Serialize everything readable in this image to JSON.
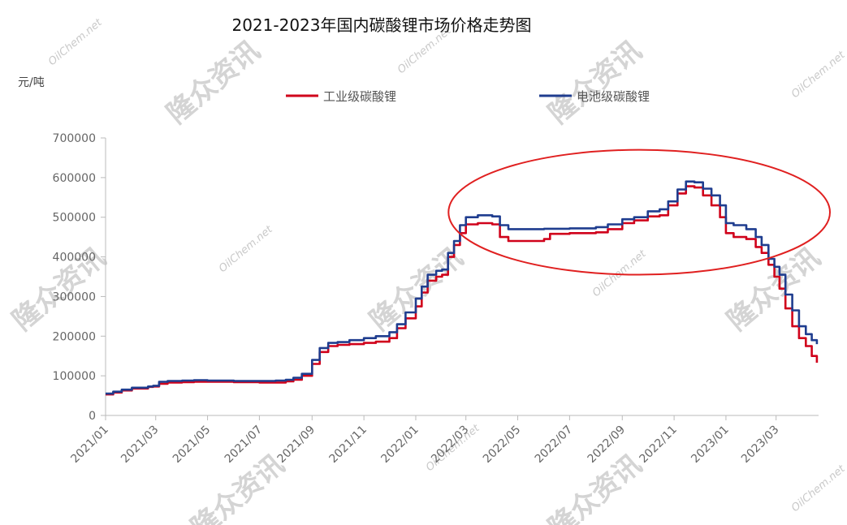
{
  "chart_data": {
    "type": "line",
    "title": "2021-2023年国内碳酸锂市场价格走势图",
    "ylabel": "元/吨",
    "xlabel": "",
    "ylim": [
      0,
      700000
    ],
    "yticks": [
      0,
      100000,
      200000,
      300000,
      400000,
      500000,
      600000,
      700000
    ],
    "ytick_labels": [
      "0",
      "100000",
      "200000",
      "300000",
      "400000",
      "500000",
      "600000",
      "700000"
    ],
    "xlim": [
      "2021-01-01",
      "2023-04-20"
    ],
    "xticks": [
      "2021-01-01",
      "2021-03-01",
      "2021-05-01",
      "2021-07-01",
      "2021-09-01",
      "2021-11-01",
      "2022-01-01",
      "2022-03-01",
      "2022-05-01",
      "2022-07-01",
      "2022-09-01",
      "2022-11-01",
      "2023-01-01",
      "2023-03-01"
    ],
    "xtick_labels": [
      "2021/01",
      "2021/03",
      "2021/05",
      "2021/07",
      "2021/09",
      "2021/11",
      "2022/01",
      "2022/03",
      "2022/05",
      "2022/07",
      "2022/09",
      "2022/11",
      "2023/01",
      "2023/03"
    ],
    "legend_position": "top",
    "grid": false,
    "series": [
      {
        "name": "工业级碳酸锂",
        "color": "#d0021b",
        "points": [
          [
            "2021-01-01",
            53000
          ],
          [
            "2021-01-10",
            58000
          ],
          [
            "2021-01-20",
            63000
          ],
          [
            "2021-02-01",
            68000
          ],
          [
            "2021-02-20",
            72000
          ],
          [
            "2021-02-26",
            73000
          ],
          [
            "2021-03-05",
            80000
          ],
          [
            "2021-03-15",
            83000
          ],
          [
            "2021-04-01",
            84000
          ],
          [
            "2021-04-15",
            85000
          ],
          [
            "2021-05-01",
            85000
          ],
          [
            "2021-06-01",
            84000
          ],
          [
            "2021-07-01",
            83000
          ],
          [
            "2021-07-20",
            83000
          ],
          [
            "2021-08-01",
            86000
          ],
          [
            "2021-08-10",
            90000
          ],
          [
            "2021-08-20",
            100000
          ],
          [
            "2021-09-01",
            130000
          ],
          [
            "2021-09-10",
            160000
          ],
          [
            "2021-09-20",
            175000
          ],
          [
            "2021-10-01",
            178000
          ],
          [
            "2021-10-15",
            180000
          ],
          [
            "2021-11-01",
            183000
          ],
          [
            "2021-11-15",
            186000
          ],
          [
            "2021-12-01",
            195000
          ],
          [
            "2021-12-10",
            220000
          ],
          [
            "2021-12-20",
            245000
          ],
          [
            "2022-01-01",
            275000
          ],
          [
            "2022-01-08",
            310000
          ],
          [
            "2022-01-15",
            340000
          ],
          [
            "2022-01-25",
            350000
          ],
          [
            "2022-02-01",
            355000
          ],
          [
            "2022-02-08",
            400000
          ],
          [
            "2022-02-15",
            430000
          ],
          [
            "2022-02-22",
            460000
          ],
          [
            "2022-03-01",
            482000
          ],
          [
            "2022-03-15",
            485000
          ],
          [
            "2022-04-01",
            482000
          ],
          [
            "2022-04-10",
            450000
          ],
          [
            "2022-04-20",
            440000
          ],
          [
            "2022-05-15",
            440000
          ],
          [
            "2022-06-01",
            445000
          ],
          [
            "2022-06-08",
            458000
          ],
          [
            "2022-07-01",
            460000
          ],
          [
            "2022-08-01",
            462000
          ],
          [
            "2022-08-15",
            470000
          ],
          [
            "2022-09-01",
            485000
          ],
          [
            "2022-09-15",
            492000
          ],
          [
            "2022-10-01",
            502000
          ],
          [
            "2022-10-15",
            505000
          ],
          [
            "2022-10-25",
            530000
          ],
          [
            "2022-11-05",
            560000
          ],
          [
            "2022-11-15",
            578000
          ],
          [
            "2022-11-25",
            575000
          ],
          [
            "2022-12-05",
            555000
          ],
          [
            "2022-12-15",
            530000
          ],
          [
            "2022-12-25",
            500000
          ],
          [
            "2023-01-01",
            460000
          ],
          [
            "2023-01-10",
            450000
          ],
          [
            "2023-01-25",
            445000
          ],
          [
            "2023-02-05",
            425000
          ],
          [
            "2023-02-12",
            410000
          ],
          [
            "2023-02-20",
            380000
          ],
          [
            "2023-02-27",
            350000
          ],
          [
            "2023-03-05",
            320000
          ],
          [
            "2023-03-12",
            270000
          ],
          [
            "2023-03-20",
            225000
          ],
          [
            "2023-03-28",
            195000
          ],
          [
            "2023-04-05",
            175000
          ],
          [
            "2023-04-12",
            150000
          ],
          [
            "2023-04-18",
            133000
          ]
        ]
      },
      {
        "name": "电池级碳酸锂",
        "color": "#1f3d8f",
        "points": [
          [
            "2021-01-01",
            55000
          ],
          [
            "2021-01-10",
            60000
          ],
          [
            "2021-01-20",
            65000
          ],
          [
            "2021-02-01",
            70000
          ],
          [
            "2021-02-20",
            73000
          ],
          [
            "2021-02-26",
            75000
          ],
          [
            "2021-03-05",
            85000
          ],
          [
            "2021-03-15",
            87000
          ],
          [
            "2021-04-01",
            88000
          ],
          [
            "2021-04-15",
            89000
          ],
          [
            "2021-05-01",
            88000
          ],
          [
            "2021-06-01",
            87000
          ],
          [
            "2021-07-01",
            87000
          ],
          [
            "2021-07-20",
            88000
          ],
          [
            "2021-08-01",
            90000
          ],
          [
            "2021-08-10",
            95000
          ],
          [
            "2021-08-20",
            105000
          ],
          [
            "2021-09-01",
            140000
          ],
          [
            "2021-09-10",
            170000
          ],
          [
            "2021-09-20",
            183000
          ],
          [
            "2021-10-01",
            185000
          ],
          [
            "2021-10-15",
            190000
          ],
          [
            "2021-11-01",
            195000
          ],
          [
            "2021-11-15",
            200000
          ],
          [
            "2021-12-01",
            210000
          ],
          [
            "2021-12-10",
            230000
          ],
          [
            "2021-12-20",
            260000
          ],
          [
            "2022-01-01",
            295000
          ],
          [
            "2022-01-08",
            325000
          ],
          [
            "2022-01-15",
            355000
          ],
          [
            "2022-01-25",
            365000
          ],
          [
            "2022-02-01",
            368000
          ],
          [
            "2022-02-08",
            410000
          ],
          [
            "2022-02-15",
            440000
          ],
          [
            "2022-02-22",
            480000
          ],
          [
            "2022-03-01",
            500000
          ],
          [
            "2022-03-15",
            505000
          ],
          [
            "2022-04-01",
            502000
          ],
          [
            "2022-04-10",
            480000
          ],
          [
            "2022-04-20",
            470000
          ],
          [
            "2022-05-15",
            470000
          ],
          [
            "2022-06-01",
            471000
          ],
          [
            "2022-07-01",
            472000
          ],
          [
            "2022-08-01",
            475000
          ],
          [
            "2022-08-15",
            482000
          ],
          [
            "2022-09-01",
            495000
          ],
          [
            "2022-09-15",
            500000
          ],
          [
            "2022-10-01",
            515000
          ],
          [
            "2022-10-15",
            520000
          ],
          [
            "2022-10-25",
            540000
          ],
          [
            "2022-11-05",
            570000
          ],
          [
            "2022-11-15",
            590000
          ],
          [
            "2022-11-25",
            588000
          ],
          [
            "2022-12-05",
            572000
          ],
          [
            "2022-12-15",
            555000
          ],
          [
            "2022-12-25",
            530000
          ],
          [
            "2023-01-01",
            485000
          ],
          [
            "2023-01-10",
            480000
          ],
          [
            "2023-01-25",
            470000
          ],
          [
            "2023-02-05",
            450000
          ],
          [
            "2023-02-12",
            430000
          ],
          [
            "2023-02-20",
            395000
          ],
          [
            "2023-02-27",
            375000
          ],
          [
            "2023-03-05",
            355000
          ],
          [
            "2023-03-12",
            305000
          ],
          [
            "2023-03-20",
            265000
          ],
          [
            "2023-03-28",
            225000
          ],
          [
            "2023-04-05",
            205000
          ],
          [
            "2023-04-12",
            190000
          ],
          [
            "2023-04-18",
            180000
          ]
        ]
      }
    ],
    "annotations": [
      {
        "type": "ellipse",
        "color": "#e02020",
        "x_range": [
          "2022-02-20",
          "2023-04-20"
        ],
        "y_range": [
          355000,
          670000
        ]
      }
    ]
  },
  "colors": {
    "axis": "#bbbbbb",
    "tick_text": "#666666"
  },
  "watermarks": {
    "logo": "隆众资讯",
    "site": "OilChem.net"
  }
}
